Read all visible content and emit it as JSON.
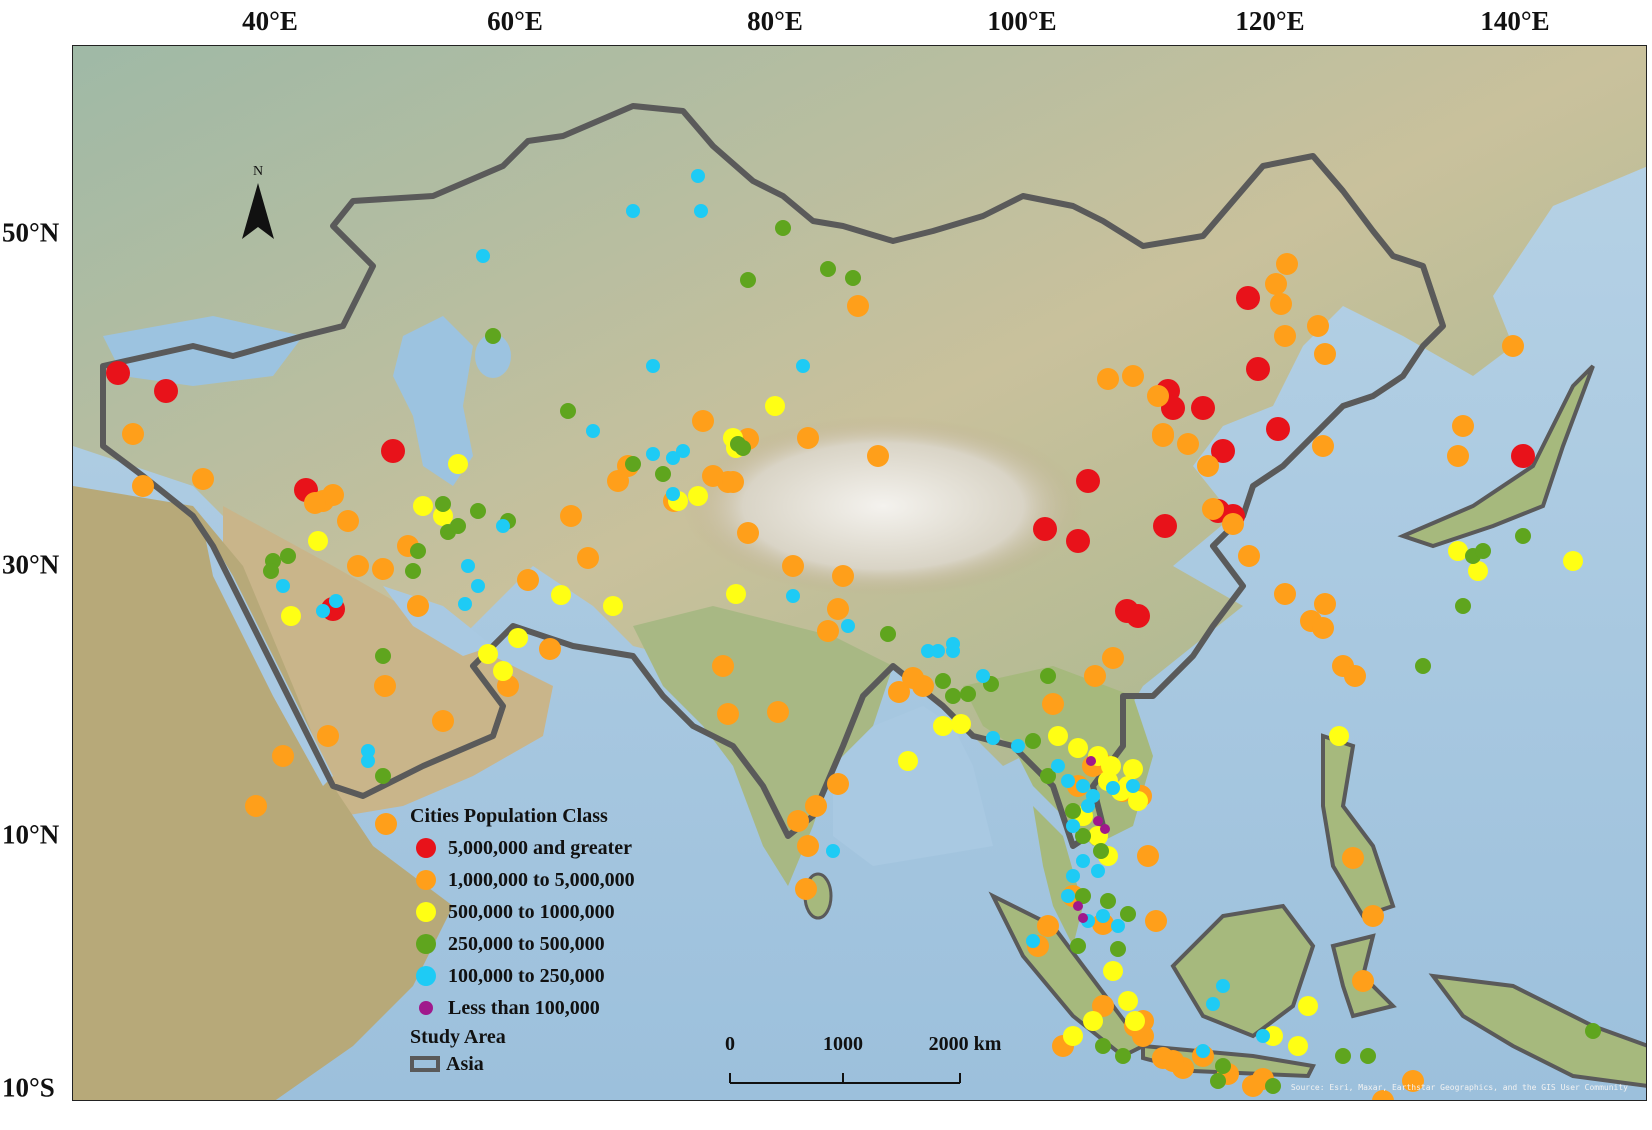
{
  "map": {
    "top_axis_labels": [
      "40°E",
      "60°E",
      "80°E",
      "100°E",
      "120°E",
      "140°E"
    ],
    "left_axis_labels": [
      "50°N",
      "30°N",
      "10°N",
      "10°S"
    ],
    "north_label": "N",
    "credits": "Source: Esri, Maxar, Earthstar Geographics, and the GIS User Community"
  },
  "legend": {
    "title": "Cities Population Class",
    "classes": [
      {
        "label": "5,000,000 and greater",
        "color": "#e8121a"
      },
      {
        "label": "1,000,000 to 5,000,000",
        "color": "#ff9f1a"
      },
      {
        "label": "500,000 to 1000,000",
        "color": "#ffff14"
      },
      {
        "label": "250,000 to 500,000",
        "color": "#5fa51e"
      },
      {
        "label": "100,000 to 250,000",
        "color": "#1ecbf5"
      },
      {
        "label": "Less than 100,000",
        "color": "#a0198c"
      }
    ],
    "study_area_title": "Study Area",
    "study_area_label": "Asia"
  },
  "scale_bar": {
    "labels": [
      "0",
      "1000",
      "2000 km"
    ]
  },
  "colors": {
    "ocean": "#a9c9e2",
    "land": "#c7c2a0",
    "border": "#5a5a5a",
    "plateau": "#e6e3dc"
  }
}
